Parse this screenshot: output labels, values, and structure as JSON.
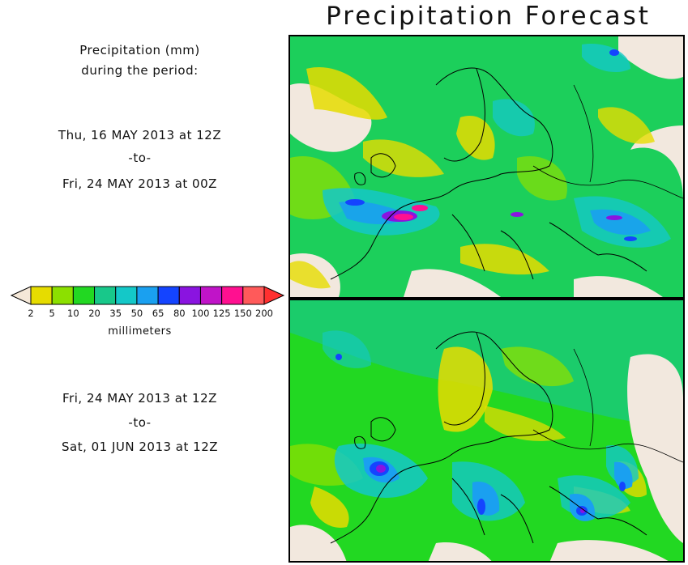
{
  "title": "Precipitation Forecast",
  "description": {
    "line1": "Precipitation (mm)",
    "line2": "during the period:"
  },
  "periods": [
    {
      "start": "Thu, 16 MAY 2013 at 12Z",
      "separator": "-to-",
      "end": "Fri, 24 MAY 2013 at 00Z"
    },
    {
      "start": "Fri, 24 MAY 2013 at 12Z",
      "separator": "-to-",
      "end": "Sat, 01 JUN 2013 at 12Z"
    }
  ],
  "legend": {
    "units": "millimeters",
    "thresholds": [
      "2",
      "5",
      "10",
      "20",
      "35",
      "50",
      "65",
      "80",
      "100",
      "125",
      "150",
      "200"
    ],
    "colors": [
      "#f5e8d8",
      "#e6dc00",
      "#8ce000",
      "#22d822",
      "#18c88a",
      "#14c8c8",
      "#1aa0f0",
      "#1444ff",
      "#8a14e0",
      "#c014c8",
      "#ff1090",
      "#ff5a5a",
      "#ff3030"
    ]
  },
  "map_colors": {
    "land": "#f2e8de",
    "sea": "#1ec8a0",
    "outline": "#000000"
  }
}
